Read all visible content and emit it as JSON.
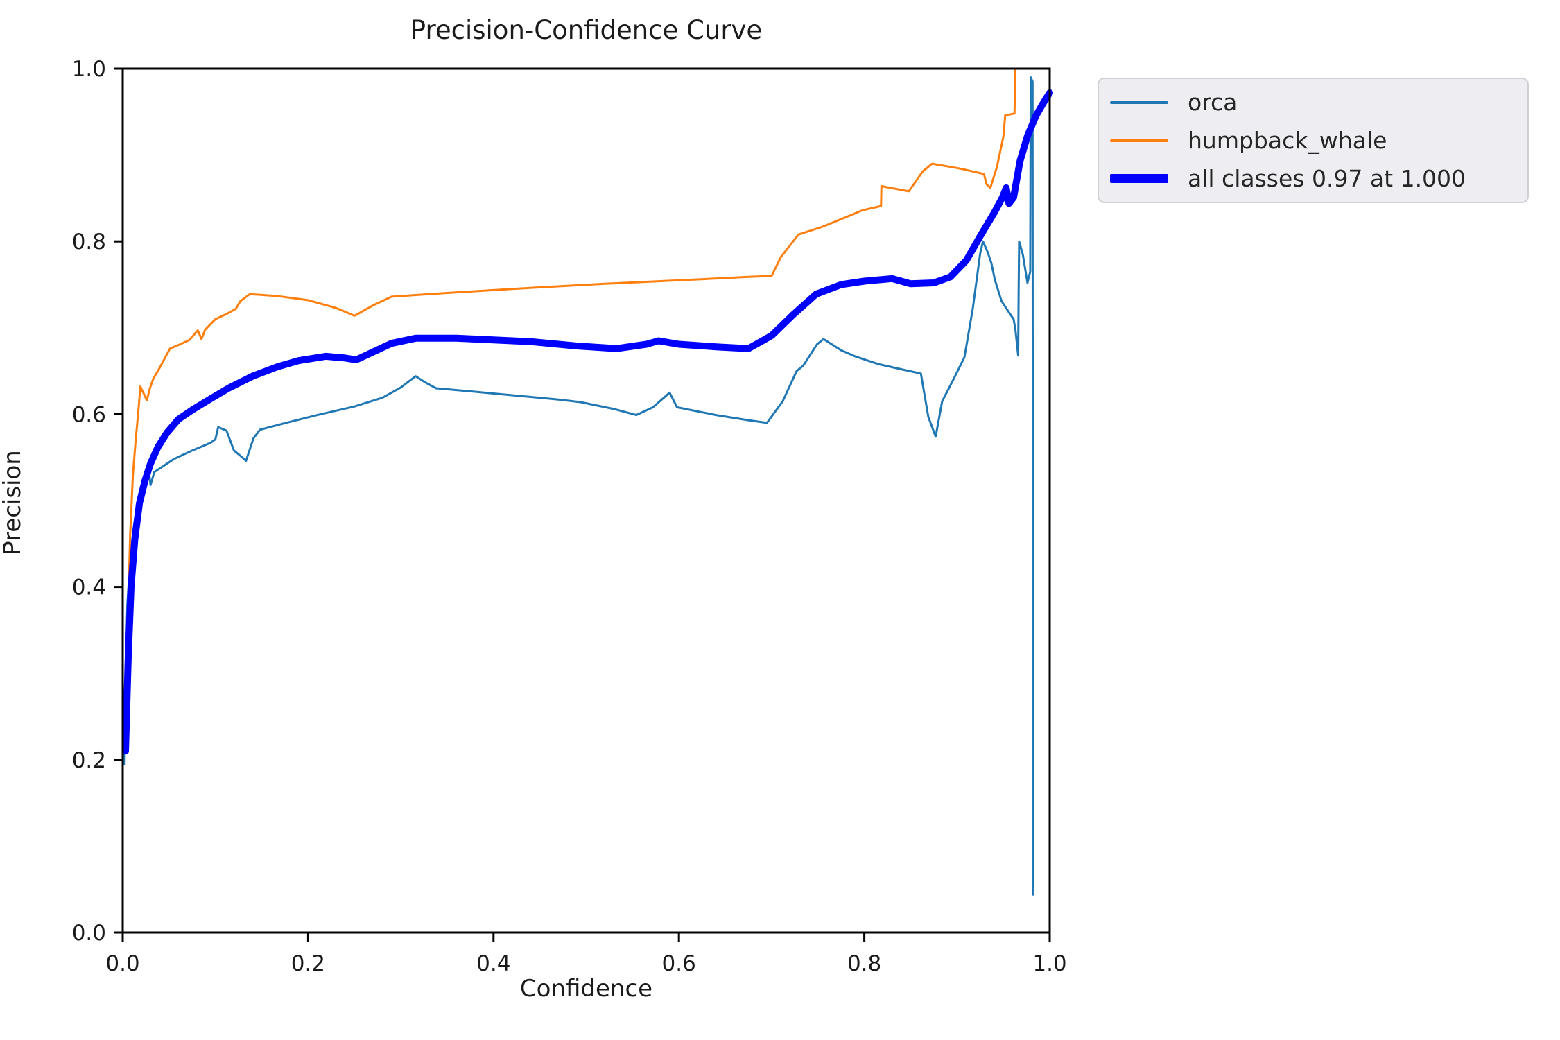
{
  "title": "Precision-Confidence Curve",
  "axes": {
    "x_label": "Confidence",
    "y_label": "Precision",
    "x_tick_labels": [
      "0.0",
      "0.2",
      "0.4",
      "0.6",
      "0.8",
      "1.0"
    ],
    "y_tick_labels": [
      "0.0",
      "0.2",
      "0.4",
      "0.6",
      "0.8",
      "1.0"
    ]
  },
  "legend": {
    "items": [
      {
        "label": "orca",
        "color": "#1f77b4",
        "thick": false
      },
      {
        "label": "humpback_whale",
        "color": "#ff7f0e",
        "thick": false
      },
      {
        "label": "all classes 0.97 at 1.000",
        "color": "#0000ff",
        "thick": true
      }
    ]
  },
  "colors": {
    "orca": "#1f77b4",
    "humpback_whale": "#ff7f0e",
    "all_classes": "#0000ff",
    "spine": "#000000",
    "text": "#1a1a1a",
    "legend_bg": "#ededf2",
    "legend_border": "#cfcfd6"
  },
  "chart_data": {
    "type": "line",
    "title": "Precision-Confidence Curve",
    "xlabel": "Confidence",
    "ylabel": "Precision",
    "xlim": [
      0,
      1
    ],
    "ylim": [
      0,
      1
    ],
    "grid": false,
    "legend_position": "outside upper right",
    "series": [
      {
        "name": "orca",
        "color": "#1f77b4",
        "width": 3,
        "points": [
          [
            0.002,
            0.195
          ],
          [
            0.003,
            0.3
          ],
          [
            0.005,
            0.38
          ],
          [
            0.008,
            0.43
          ],
          [
            0.012,
            0.47
          ],
          [
            0.017,
            0.5
          ],
          [
            0.022,
            0.52
          ],
          [
            0.028,
            0.536
          ],
          [
            0.03,
            0.518
          ],
          [
            0.034,
            0.533
          ],
          [
            0.055,
            0.548
          ],
          [
            0.075,
            0.558
          ],
          [
            0.095,
            0.567
          ],
          [
            0.1,
            0.571
          ],
          [
            0.103,
            0.585
          ],
          [
            0.112,
            0.581
          ],
          [
            0.12,
            0.558
          ],
          [
            0.128,
            0.551
          ],
          [
            0.133,
            0.546
          ],
          [
            0.141,
            0.572
          ],
          [
            0.148,
            0.582
          ],
          [
            0.18,
            0.591
          ],
          [
            0.21,
            0.599
          ],
          [
            0.25,
            0.609
          ],
          [
            0.28,
            0.619
          ],
          [
            0.3,
            0.631
          ],
          [
            0.316,
            0.644
          ],
          [
            0.326,
            0.637
          ],
          [
            0.338,
            0.63
          ],
          [
            0.38,
            0.626
          ],
          [
            0.43,
            0.621
          ],
          [
            0.47,
            0.617
          ],
          [
            0.494,
            0.614
          ],
          [
            0.53,
            0.606
          ],
          [
            0.554,
            0.599
          ],
          [
            0.572,
            0.608
          ],
          [
            0.59,
            0.625
          ],
          [
            0.598,
            0.608
          ],
          [
            0.64,
            0.599
          ],
          [
            0.675,
            0.593
          ],
          [
            0.695,
            0.59
          ],
          [
            0.712,
            0.615
          ],
          [
            0.727,
            0.65
          ],
          [
            0.734,
            0.656
          ],
          [
            0.749,
            0.681
          ],
          [
            0.756,
            0.687
          ],
          [
            0.775,
            0.674
          ],
          [
            0.79,
            0.667
          ],
          [
            0.815,
            0.658
          ],
          [
            0.84,
            0.652
          ],
          [
            0.861,
            0.647
          ],
          [
            0.869,
            0.597
          ],
          [
            0.877,
            0.574
          ],
          [
            0.884,
            0.615
          ],
          [
            0.896,
            0.64
          ],
          [
            0.908,
            0.666
          ],
          [
            0.917,
            0.722
          ],
          [
            0.925,
            0.786
          ],
          [
            0.928,
            0.8
          ],
          [
            0.933,
            0.788
          ],
          [
            0.937,
            0.775
          ],
          [
            0.941,
            0.755
          ],
          [
            0.948,
            0.731
          ],
          [
            0.956,
            0.718
          ],
          [
            0.961,
            0.71
          ],
          [
            0.963,
            0.698
          ],
          [
            0.966,
            0.668
          ],
          [
            0.9665,
            0.745
          ],
          [
            0.967,
            0.8
          ],
          [
            0.971,
            0.785
          ],
          [
            0.976,
            0.752
          ],
          [
            0.979,
            0.765
          ],
          [
            0.9795,
            0.99
          ],
          [
            0.9815,
            0.985
          ],
          [
            0.982,
            0.044
          ]
        ]
      },
      {
        "name": "humpback_whale",
        "color": "#ff7f0e",
        "width": 3,
        "points": [
          [
            0.004,
            0.265
          ],
          [
            0.006,
            0.38
          ],
          [
            0.008,
            0.46
          ],
          [
            0.011,
            0.53
          ],
          [
            0.014,
            0.57
          ],
          [
            0.017,
            0.605
          ],
          [
            0.019,
            0.632
          ],
          [
            0.023,
            0.623
          ],
          [
            0.026,
            0.616
          ],
          [
            0.029,
            0.629
          ],
          [
            0.033,
            0.641
          ],
          [
            0.04,
            0.654
          ],
          [
            0.047,
            0.668
          ],
          [
            0.051,
            0.676
          ],
          [
            0.062,
            0.681
          ],
          [
            0.072,
            0.686
          ],
          [
            0.081,
            0.697
          ],
          [
            0.085,
            0.687
          ],
          [
            0.089,
            0.698
          ],
          [
            0.1,
            0.71
          ],
          [
            0.112,
            0.716
          ],
          [
            0.122,
            0.722
          ],
          [
            0.127,
            0.731
          ],
          [
            0.137,
            0.739
          ],
          [
            0.165,
            0.737
          ],
          [
            0.2,
            0.732
          ],
          [
            0.23,
            0.723
          ],
          [
            0.25,
            0.714
          ],
          [
            0.27,
            0.726
          ],
          [
            0.29,
            0.736
          ],
          [
            0.33,
            0.739
          ],
          [
            0.42,
            0.745
          ],
          [
            0.52,
            0.751
          ],
          [
            0.62,
            0.756
          ],
          [
            0.675,
            0.759
          ],
          [
            0.7,
            0.76
          ],
          [
            0.71,
            0.782
          ],
          [
            0.729,
            0.808
          ],
          [
            0.755,
            0.817
          ],
          [
            0.78,
            0.828
          ],
          [
            0.798,
            0.836
          ],
          [
            0.818,
            0.841
          ],
          [
            0.8185,
            0.864
          ],
          [
            0.838,
            0.86
          ],
          [
            0.848,
            0.858
          ],
          [
            0.863,
            0.881
          ],
          [
            0.873,
            0.89
          ],
          [
            0.9,
            0.885
          ],
          [
            0.909,
            0.883
          ],
          [
            0.929,
            0.878
          ],
          [
            0.932,
            0.866
          ],
          [
            0.936,
            0.862
          ],
          [
            0.943,
            0.886
          ],
          [
            0.95,
            0.921
          ],
          [
            0.952,
            0.946
          ],
          [
            0.962,
            0.948
          ],
          [
            0.963,
            1.0
          ],
          [
            1.0,
            1.0
          ]
        ]
      },
      {
        "name": "all classes",
        "color": "#0000ff",
        "width": 10,
        "points": [
          [
            0.003,
            0.21
          ],
          [
            0.006,
            0.32
          ],
          [
            0.009,
            0.4
          ],
          [
            0.013,
            0.455
          ],
          [
            0.018,
            0.497
          ],
          [
            0.024,
            0.523
          ],
          [
            0.03,
            0.543
          ],
          [
            0.038,
            0.562
          ],
          [
            0.048,
            0.579
          ],
          [
            0.06,
            0.594
          ],
          [
            0.075,
            0.605
          ],
          [
            0.095,
            0.618
          ],
          [
            0.114,
            0.63
          ],
          [
            0.14,
            0.644
          ],
          [
            0.167,
            0.655
          ],
          [
            0.19,
            0.662
          ],
          [
            0.219,
            0.667
          ],
          [
            0.24,
            0.665
          ],
          [
            0.252,
            0.663
          ],
          [
            0.27,
            0.672
          ],
          [
            0.29,
            0.682
          ],
          [
            0.316,
            0.688
          ],
          [
            0.36,
            0.688
          ],
          [
            0.4,
            0.686
          ],
          [
            0.44,
            0.684
          ],
          [
            0.49,
            0.679
          ],
          [
            0.533,
            0.676
          ],
          [
            0.565,
            0.681
          ],
          [
            0.578,
            0.685
          ],
          [
            0.6,
            0.681
          ],
          [
            0.64,
            0.678
          ],
          [
            0.675,
            0.676
          ],
          [
            0.7,
            0.691
          ],
          [
            0.722,
            0.714
          ],
          [
            0.748,
            0.739
          ],
          [
            0.775,
            0.75
          ],
          [
            0.8,
            0.754
          ],
          [
            0.83,
            0.757
          ],
          [
            0.85,
            0.751
          ],
          [
            0.875,
            0.752
          ],
          [
            0.893,
            0.759
          ],
          [
            0.91,
            0.778
          ],
          [
            0.925,
            0.806
          ],
          [
            0.94,
            0.833
          ],
          [
            0.949,
            0.851
          ],
          [
            0.953,
            0.862
          ],
          [
            0.956,
            0.844
          ],
          [
            0.961,
            0.851
          ],
          [
            0.968,
            0.893
          ],
          [
            0.976,
            0.922
          ],
          [
            0.985,
            0.945
          ],
          [
            0.993,
            0.96
          ],
          [
            1.0,
            0.972
          ]
        ]
      }
    ]
  }
}
